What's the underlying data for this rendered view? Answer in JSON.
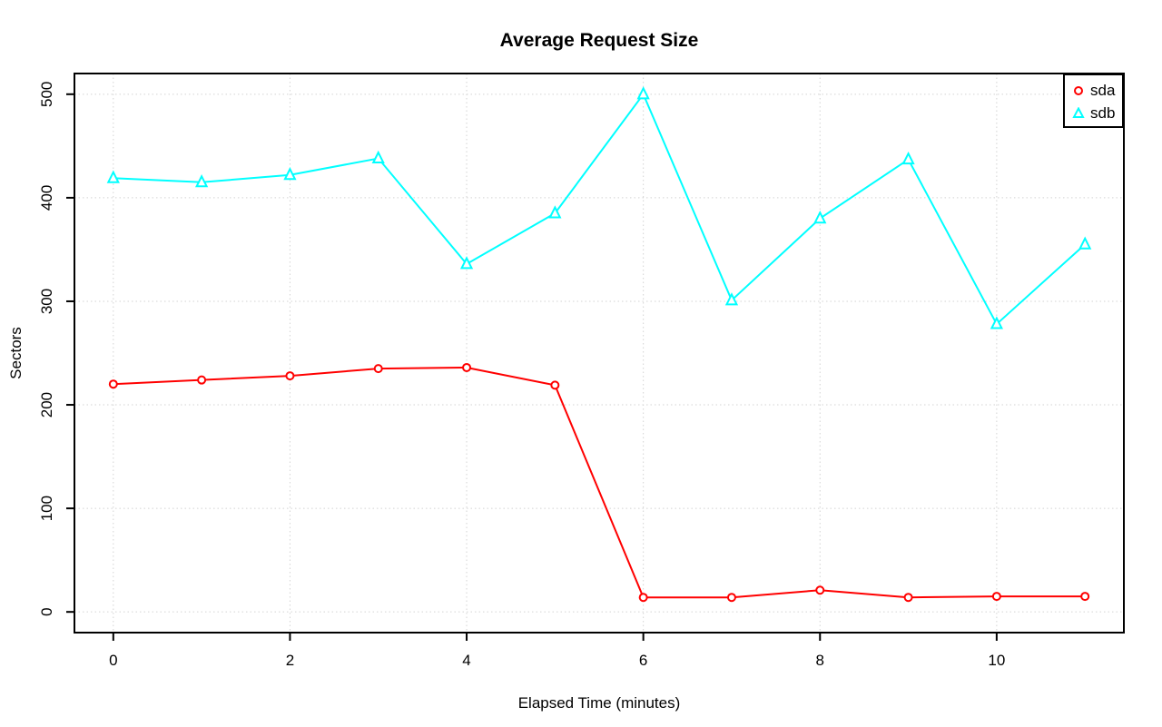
{
  "chart_data": {
    "type": "line",
    "title": "Average Request Size",
    "xlabel": "Elapsed Time (minutes)",
    "ylabel": "Sectors",
    "x": [
      0,
      1,
      2,
      3,
      4,
      5,
      6,
      7,
      8,
      9,
      10,
      11
    ],
    "series": [
      {
        "name": "sda",
        "color": "#ff0000",
        "marker": "circle",
        "values": [
          220,
          224,
          228,
          235,
          236,
          219,
          14,
          14,
          21,
          14,
          15,
          15
        ]
      },
      {
        "name": "sdb",
        "color": "#00ffff",
        "marker": "triangle",
        "values": [
          419,
          415,
          422,
          438,
          336,
          385,
          500,
          301,
          380,
          437,
          278,
          355
        ]
      }
    ],
    "x_axis": {
      "ticks": [
        0,
        2,
        4,
        6,
        8,
        10
      ],
      "lim": [
        -0.44,
        11.44
      ]
    },
    "y_axis": {
      "ticks": [
        0,
        100,
        200,
        300,
        400,
        500
      ],
      "lim": [
        -20,
        520
      ]
    },
    "grid": {
      "on": true,
      "color": "#d3d3d3",
      "style": "dotted"
    },
    "legend": {
      "position": "topright"
    },
    "axis_color": "#000000",
    "background": "#ffffff"
  }
}
